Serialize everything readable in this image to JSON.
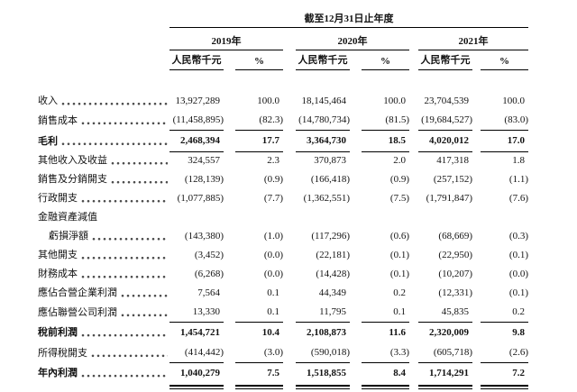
{
  "table": {
    "period_header": "截至12月31日止年度",
    "year_groups": [
      {
        "year": "2019年",
        "unit": "人民幣千元",
        "pct": "%"
      },
      {
        "year": "2020年",
        "unit": "人民幣千元",
        "pct": "%"
      },
      {
        "year": "2021年",
        "unit": "人民幣千元",
        "pct": "%"
      }
    ],
    "rows": [
      {
        "label": "收入",
        "dots": true,
        "bold": false,
        "indent": false,
        "rule": "none",
        "values": [
          "13,927,289",
          "100.0",
          "18,145,464",
          "100.0",
          "23,704,539",
          "100.0"
        ]
      },
      {
        "label": "銷售成本",
        "dots": true,
        "bold": false,
        "indent": false,
        "rule": "single",
        "values": [
          "(11,458,895)",
          "(82.3)",
          "(14,780,734)",
          "(81.5)",
          "(19,684,527)",
          "(83.0)"
        ]
      },
      {
        "label": "毛利",
        "dots": true,
        "bold": true,
        "indent": false,
        "rule": "single",
        "values": [
          "2,468,394",
          "17.7",
          "3,364,730",
          "18.5",
          "4,020,012",
          "17.0"
        ]
      },
      {
        "label": "其他收入及收益",
        "dots": true,
        "bold": false,
        "indent": false,
        "rule": "none",
        "values": [
          "324,557",
          "2.3",
          "370,873",
          "2.0",
          "417,318",
          "1.8"
        ]
      },
      {
        "label": "銷售及分銷開支",
        "dots": true,
        "bold": false,
        "indent": false,
        "rule": "none",
        "values": [
          "(128,139)",
          "(0.9)",
          "(166,418)",
          "(0.9)",
          "(257,152)",
          "(1.1)"
        ]
      },
      {
        "label": "行政開支",
        "dots": true,
        "bold": false,
        "indent": false,
        "rule": "none",
        "values": [
          "(1,077,885)",
          "(7.7)",
          "(1,362,551)",
          "(7.5)",
          "(1,791,847)",
          "(7.6)"
        ]
      },
      {
        "label": "金融資產減值",
        "dots": false,
        "bold": false,
        "indent": false,
        "rule": "none",
        "values": [
          "",
          "",
          "",
          "",
          "",
          ""
        ]
      },
      {
        "label": "虧損淨額",
        "dots": true,
        "bold": false,
        "indent": true,
        "rule": "none",
        "values": [
          "(143,380)",
          "(1.0)",
          "(117,296)",
          "(0.6)",
          "(68,669)",
          "(0.3)"
        ]
      },
      {
        "label": "其他開支",
        "dots": true,
        "bold": false,
        "indent": false,
        "rule": "none",
        "values": [
          "(3,452)",
          "(0.0)",
          "(22,181)",
          "(0.1)",
          "(22,950)",
          "(0.1)"
        ]
      },
      {
        "label": "財務成本",
        "dots": true,
        "bold": false,
        "indent": false,
        "rule": "none",
        "values": [
          "(6,268)",
          "(0.0)",
          "(14,428)",
          "(0.1)",
          "(10,207)",
          "(0.0)"
        ]
      },
      {
        "label": "應佔合營企業利潤",
        "dots": true,
        "bold": false,
        "indent": false,
        "rule": "none",
        "values": [
          "7,564",
          "0.1",
          "44,349",
          "0.2",
          "(12,331)",
          "(0.1)"
        ]
      },
      {
        "label": "應佔聯營公司利潤",
        "dots": true,
        "bold": false,
        "indent": false,
        "rule": "single",
        "values": [
          "13,330",
          "0.1",
          "11,795",
          "0.1",
          "45,835",
          "0.2"
        ]
      },
      {
        "label": "稅前利潤",
        "dots": true,
        "bold": true,
        "indent": false,
        "rule": "none",
        "values": [
          "1,454,721",
          "10.4",
          "2,108,873",
          "11.6",
          "2,320,009",
          "9.8"
        ]
      },
      {
        "label": "所得稅開支",
        "dots": true,
        "bold": false,
        "indent": false,
        "rule": "single",
        "values": [
          "(414,442)",
          "(3.0)",
          "(590,018)",
          "(3.3)",
          "(605,718)",
          "(2.6)"
        ]
      },
      {
        "label": "年內利潤",
        "dots": true,
        "bold": true,
        "indent": false,
        "rule": "double",
        "values": [
          "1,040,279",
          "7.5",
          "1,518,855",
          "8.4",
          "1,714,291",
          "7.2"
        ]
      }
    ]
  }
}
